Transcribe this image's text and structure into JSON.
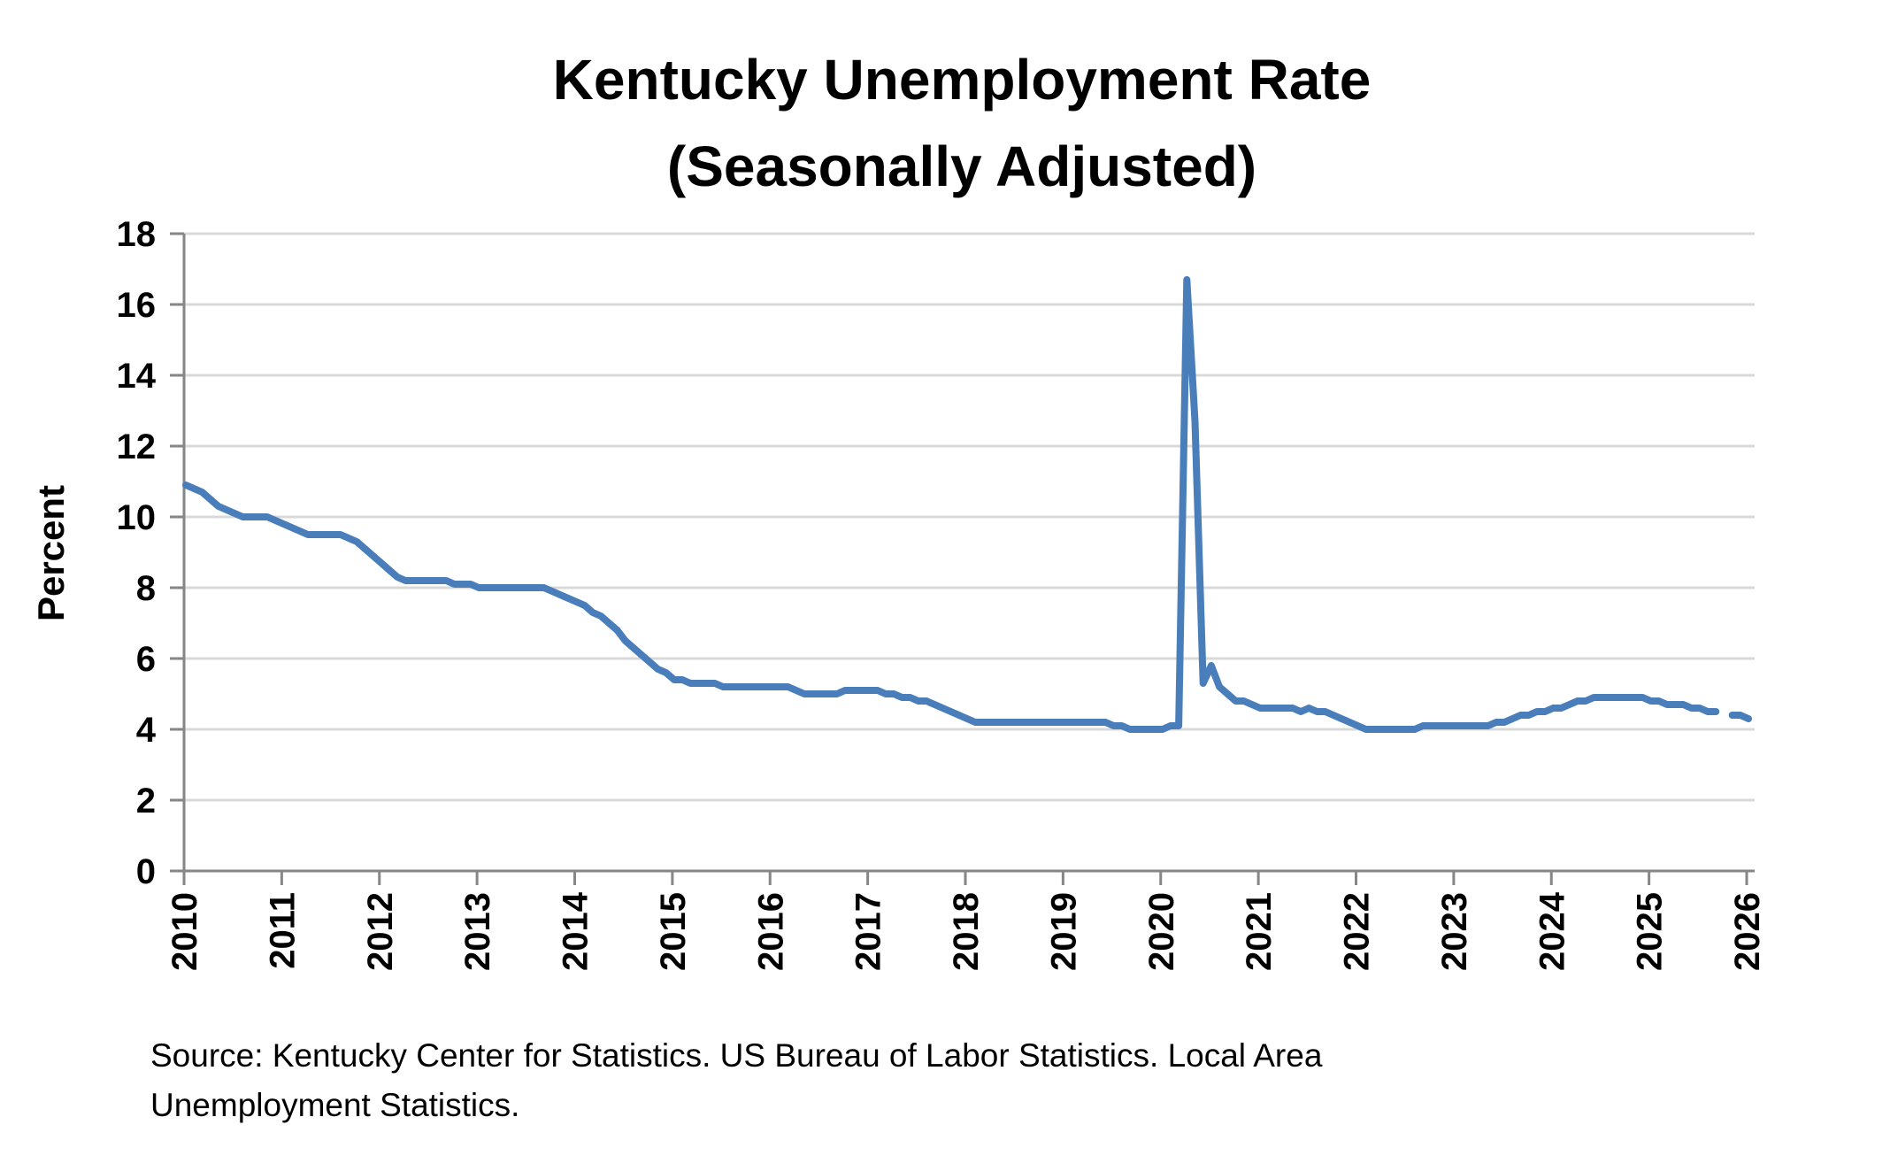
{
  "chart_data": {
    "type": "line",
    "title": [
      "Kentucky Unemployment Rate",
      "(Seasonally Adjusted)"
    ],
    "xlabel": "",
    "ylabel": "Percent",
    "ylim": [
      0,
      18
    ],
    "yticks": [
      "0",
      "2",
      "4",
      "6",
      "8",
      "10",
      "12",
      "14",
      "16",
      "18"
    ],
    "ytick_values": [
      0,
      2,
      4,
      6,
      8,
      10,
      12,
      14,
      16,
      18
    ],
    "xlim": [
      2010,
      2026
    ],
    "xticks": [
      "2010",
      "2011",
      "2012",
      "2013",
      "2014",
      "2015",
      "2016",
      "2017",
      "2018",
      "2019",
      "2020",
      "2021",
      "2022",
      "2023",
      "2024",
      "2025",
      "2026"
    ],
    "grid": "horizontal",
    "legend": "none",
    "colors": {
      "line": "#4a7ebb",
      "grid": "#d9d9d9",
      "axis": "#868686"
    },
    "series": [
      {
        "name": "Kentucky Unemployment Rate",
        "frequency": "monthly",
        "start": "2010-01",
        "values": [
          10.9,
          10.8,
          10.7,
          10.5,
          10.3,
          10.2,
          10.1,
          10.0,
          10.0,
          10.0,
          10.0,
          9.9,
          9.8,
          9.7,
          9.6,
          9.5,
          9.5,
          9.5,
          9.5,
          9.5,
          9.4,
          9.3,
          9.1,
          8.9,
          8.7,
          8.5,
          8.3,
          8.2,
          8.2,
          8.2,
          8.2,
          8.2,
          8.2,
          8.1,
          8.1,
          8.1,
          8.0,
          8.0,
          8.0,
          8.0,
          8.0,
          8.0,
          8.0,
          8.0,
          8.0,
          7.9,
          7.8,
          7.7,
          7.6,
          7.5,
          7.3,
          7.2,
          7.0,
          6.8,
          6.5,
          6.3,
          6.1,
          5.9,
          5.7,
          5.6,
          5.4,
          5.4,
          5.3,
          5.3,
          5.3,
          5.3,
          5.2,
          5.2,
          5.2,
          5.2,
          5.2,
          5.2,
          5.2,
          5.2,
          5.2,
          5.1,
          5.0,
          5.0,
          5.0,
          5.0,
          5.0,
          5.1,
          5.1,
          5.1,
          5.1,
          5.1,
          5.0,
          5.0,
          4.9,
          4.9,
          4.8,
          4.8,
          4.7,
          4.6,
          4.5,
          4.4,
          4.3,
          4.2,
          4.2,
          4.2,
          4.2,
          4.2,
          4.2,
          4.2,
          4.2,
          4.2,
          4.2,
          4.2,
          4.2,
          4.2,
          4.2,
          4.2,
          4.2,
          4.2,
          4.1,
          4.1,
          4.0,
          4.0,
          4.0,
          4.0,
          4.0,
          4.1,
          4.1,
          16.7,
          12.7,
          5.3,
          5.8,
          5.2,
          5.0,
          4.8,
          4.8,
          4.7,
          4.6,
          4.6,
          4.6,
          4.6,
          4.6,
          4.5,
          4.6,
          4.5,
          4.5,
          4.4,
          4.3,
          4.2,
          4.1,
          4.0,
          4.0,
          4.0,
          4.0,
          4.0,
          4.0,
          4.0,
          4.1,
          4.1,
          4.1,
          4.1,
          4.1,
          4.1,
          4.1,
          4.1,
          4.1,
          4.2,
          4.2,
          4.3,
          4.4,
          4.4,
          4.5,
          4.5,
          4.6,
          4.6,
          4.7,
          4.8,
          4.8,
          4.9,
          4.9,
          4.9,
          4.9,
          4.9,
          4.9,
          4.9,
          4.8,
          4.8,
          4.7,
          4.7,
          4.7,
          4.6,
          4.6,
          4.5,
          4.5,
          null,
          4.4,
          4.4,
          4.3
        ]
      }
    ],
    "notes": "October 2025 value missing (gap in line)."
  },
  "source": {
    "line1": "Source: Kentucky Center for Statistics. US Bureau of Labor Statistics. Local Area",
    "line2": "Unemployment Statistics."
  }
}
